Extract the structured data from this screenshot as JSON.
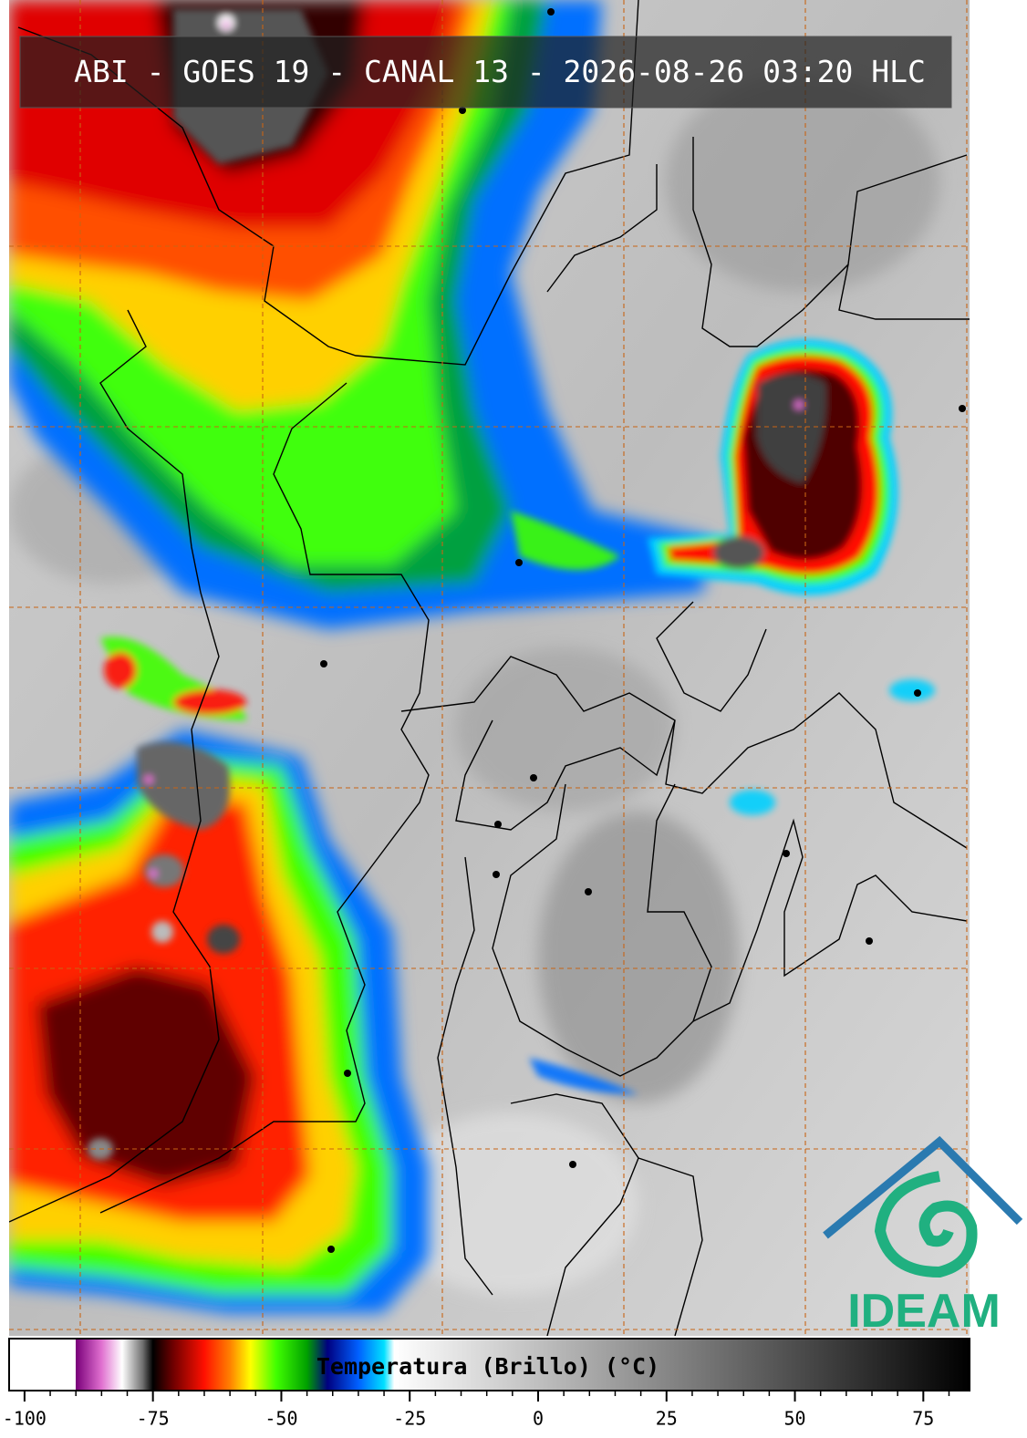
{
  "title": "ABI - GOES 19 - CANAL 13 - 2026-08-26 03:20 HLC",
  "colorbar": {
    "label": "Temperatura (Brillo) (°C)",
    "lim": [
      -103,
      84
    ],
    "ticks": [
      -100,
      -75,
      -50,
      -25,
      0,
      25,
      50,
      75
    ],
    "colormap": [
      {
        "value": -103,
        "color": "#ffffff"
      },
      {
        "value": -90,
        "color": "#ffffff"
      },
      {
        "value": -90,
        "color": "#7a007a"
      },
      {
        "value": -85,
        "color": "#e070d0"
      },
      {
        "value": -81,
        "color": "#ffffff"
      },
      {
        "value": -77,
        "color": "#707070"
      },
      {
        "value": -75,
        "color": "#000000"
      },
      {
        "value": -71,
        "color": "#700000"
      },
      {
        "value": -65,
        "color": "#ff1000"
      },
      {
        "value": -60,
        "color": "#ff8000"
      },
      {
        "value": -56,
        "color": "#ffff00"
      },
      {
        "value": -51,
        "color": "#40ff00"
      },
      {
        "value": -45,
        "color": "#00a000"
      },
      {
        "value": -41,
        "color": "#000080"
      },
      {
        "value": -35,
        "color": "#0060ff"
      },
      {
        "value": -30,
        "color": "#00e0ff"
      },
      {
        "value": -28,
        "color": "#ffffff"
      },
      {
        "value": 84,
        "color": "#000000"
      }
    ]
  },
  "logo": "IDEAM"
}
